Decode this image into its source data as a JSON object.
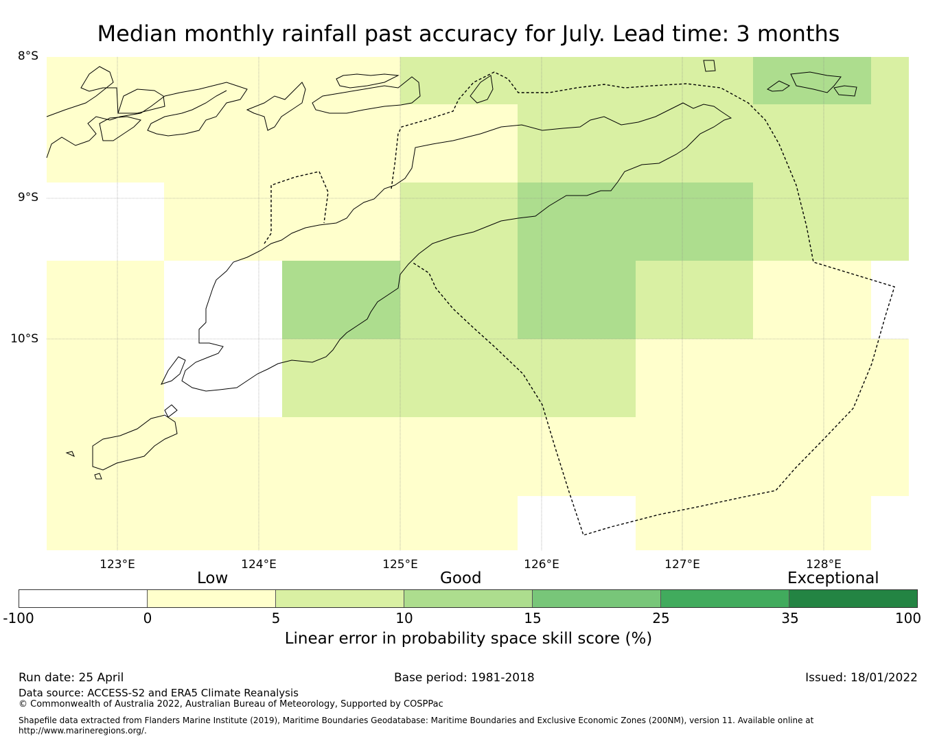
{
  "title": "Median monthly rainfall past accuracy for July. Lead time: 3 months",
  "map": {
    "lat_labels": [
      "8°S",
      "9°S",
      "10°S"
    ],
    "lon_labels": [
      "123°E",
      "124°E",
      "125°E",
      "126°E",
      "127°E",
      "128°E"
    ],
    "lon_range": [
      122.5,
      128.6
    ],
    "lat_range": [
      -8.0,
      -11.5
    ],
    "grid_resolution_deg": [
      0.833,
      0.556
    ],
    "colors": {
      "white": "#ffffff",
      "low": "#ffffcc",
      "light": "#d9f0a3",
      "good": "#addd8e"
    }
  },
  "colorbar": {
    "category_labels": [
      "Low",
      "Good",
      "Exceptional"
    ],
    "ticks": [
      "-100",
      "0",
      "5",
      "10",
      "15",
      "25",
      "35",
      "100"
    ],
    "colors": [
      "#ffffff",
      "#ffffcc",
      "#d9f0a3",
      "#addd8e",
      "#78c679",
      "#41ab5d",
      "#238443"
    ],
    "label": "Linear error in probability space skill score (%)"
  },
  "footer": {
    "run_date": "Run date: 25 April",
    "base_period": "Base period: 1981-2018",
    "issued": "Issued: 18/01/2022",
    "data_source": "Data source: ACCESS-S2 and ERA5 Climate Reanalysis",
    "copyright": "© Commonwealth of Australia 2022, Australian Bureau of Meteorology, Supported by COSPPac",
    "shapefile_note": "Shapefile data extracted from Flanders Marine Institute (2019), Maritime Boundaries Geodatabase: Maritime Boundaries and Exclusive Economic Zones (200NM), version 11. Available online at http://www.marineregions.org/."
  }
}
